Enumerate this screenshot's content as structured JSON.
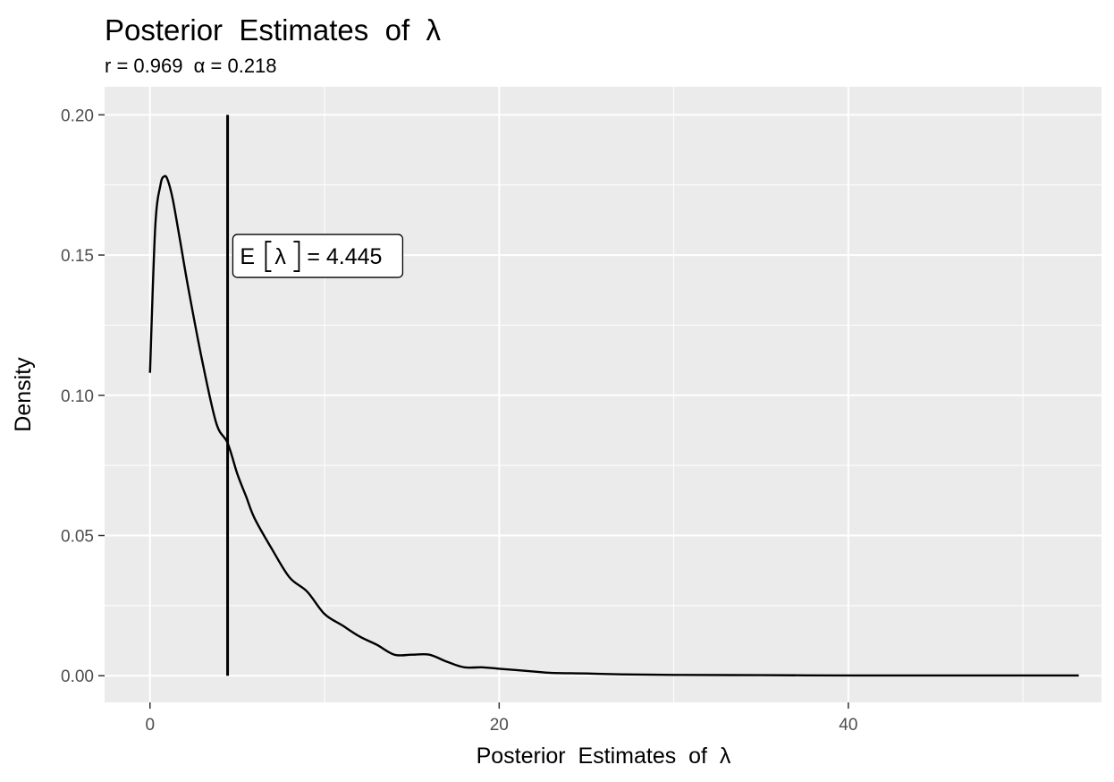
{
  "chart_data": {
    "type": "area",
    "title": "Posterior  Estimates  of  λ",
    "subtitle": "r = 0.969  α = 0.218",
    "xlabel": "Posterior  Estimates  of  λ",
    "ylabel": "Density",
    "xlim": [
      -2.6,
      54.5
    ],
    "ylim": [
      -0.0095,
      0.21
    ],
    "x_ticks": [
      0,
      20,
      40
    ],
    "x_tick_labels": [
      "0",
      "20",
      "40"
    ],
    "y_ticks": [
      0.0,
      0.05,
      0.1,
      0.15,
      0.2
    ],
    "y_tick_labels": [
      "0.00",
      "0.05",
      "0.10",
      "0.15",
      "0.20"
    ],
    "grid": true,
    "legend": "none",
    "series": [
      {
        "x": [
          0,
          0.3,
          0.6,
          0.8,
          1.0,
          1.3,
          1.7,
          2.2,
          3.0,
          3.8,
          4.445,
          5.0,
          5.5,
          6.0,
          7.0,
          8.0,
          9.0,
          10.0,
          11.0,
          12.0,
          13.0,
          14.0,
          15.0,
          16.0,
          17.0,
          18.0,
          19.0,
          20.0,
          21.0,
          22.0,
          23.0,
          25.0,
          27.0,
          30.0,
          35.0,
          40.0,
          45.0,
          50.0,
          53.2
        ],
        "y": [
          0.108,
          0.16,
          0.175,
          0.178,
          0.177,
          0.17,
          0.156,
          0.138,
          0.112,
          0.09,
          0.083,
          0.072,
          0.064,
          0.056,
          0.045,
          0.035,
          0.03,
          0.022,
          0.018,
          0.014,
          0.011,
          0.0075,
          0.0075,
          0.0075,
          0.005,
          0.003,
          0.003,
          0.0025,
          0.002,
          0.0015,
          0.001,
          0.0008,
          0.0005,
          0.0003,
          0.0002,
          0.0001,
          0.0001,
          0.0001,
          0.0001
        ]
      }
    ],
    "vline": {
      "x": 4.445,
      "ymax": 0.2
    },
    "annotation": {
      "text_prefix": "E",
      "symbol": "λ",
      "text_suffix": " = 4.445",
      "x": 5.0,
      "y": 0.15
    },
    "colors": {
      "panel": "#ebebeb",
      "grid": "#ffffff",
      "line": "#000000",
      "tick_label": "#4d4d4d",
      "tick": "#333333"
    }
  }
}
